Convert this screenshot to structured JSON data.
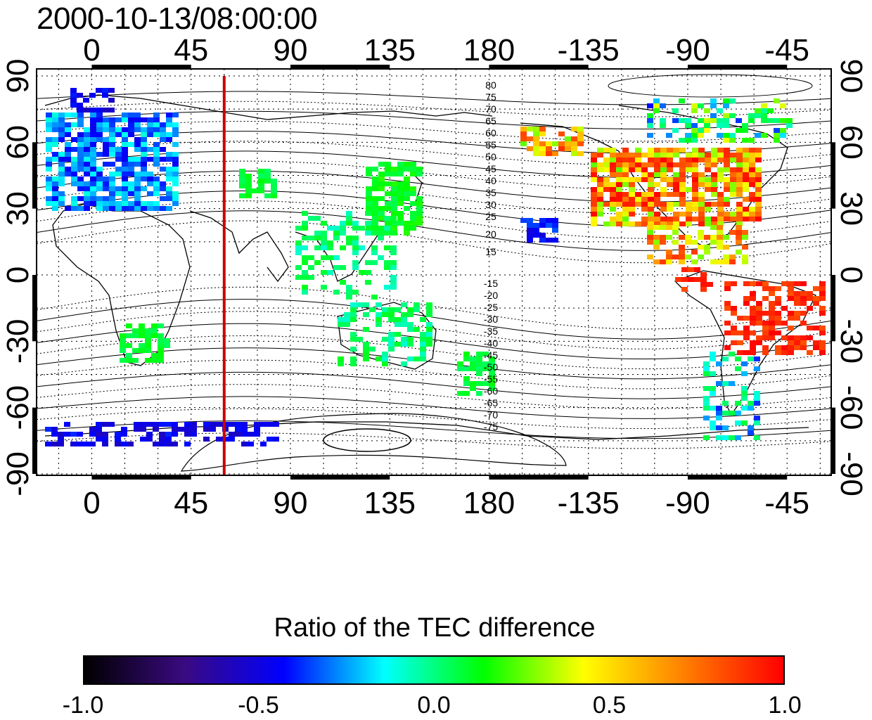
{
  "title": "2000-10-13/08:00:00",
  "map": {
    "x_ticks_top": [
      "0",
      "45",
      "90",
      "135",
      "180",
      "-135",
      "-90",
      "-45"
    ],
    "x_ticks_bottom": [
      "0",
      "45",
      "90",
      "135",
      "180",
      "-135",
      "-90",
      "-45"
    ],
    "y_ticks_left": [
      "90",
      "60",
      "30",
      "0",
      "-30",
      "-60",
      "-90"
    ],
    "y_ticks_right": [
      "90",
      "60",
      "30",
      "0",
      "-30",
      "-60",
      "-90"
    ],
    "grid": true,
    "meridian_marker": {
      "longitude": 60,
      "color": "#cc0000"
    },
    "north_contour_labels": [
      "80",
      "75",
      "70",
      "65",
      "60",
      "55",
      "50",
      "45",
      "40",
      "35",
      "30",
      "25",
      "20",
      "15"
    ],
    "south_contour_labels": [
      "-15",
      "-20",
      "-25",
      "-30",
      "-35",
      "-40",
      "-45",
      "-50",
      "-55",
      "-60",
      "-65",
      "-70",
      "-75"
    ]
  },
  "colorbar": {
    "title": "Ratio of the TEC difference",
    "ticks": [
      "-1.0",
      "-0.5",
      "0.0",
      "0.5",
      "1.0"
    ],
    "range": [
      -1.0,
      1.0
    ],
    "colors": [
      "#000000",
      "#3a0a80",
      "#0000ff",
      "#00ffff",
      "#00ff00",
      "#ffff00",
      "#ff8000",
      "#ff0000"
    ]
  }
}
